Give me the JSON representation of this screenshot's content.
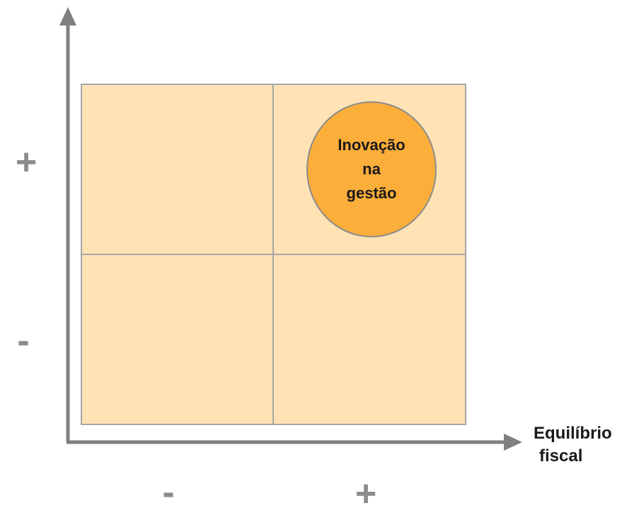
{
  "bubble": {
    "lines": [
      "Inovação",
      "na",
      "gestão"
    ]
  },
  "x_axis": {
    "label_lines": [
      "Equilíbrio",
      "fiscal"
    ],
    "minus_mark": "-",
    "plus_mark": "+"
  },
  "y_axis": {
    "plus_mark": "+",
    "minus_mark": "-"
  },
  "colors": {
    "quadrant_fill": "#FFE3B5",
    "grid_line": "#A6A6A6",
    "axis": "#7F7F7F",
    "bubble_fill": "#FBAE3A",
    "bubble_stroke": "#8C8C8C",
    "sign_color": "#8C8C8C"
  }
}
